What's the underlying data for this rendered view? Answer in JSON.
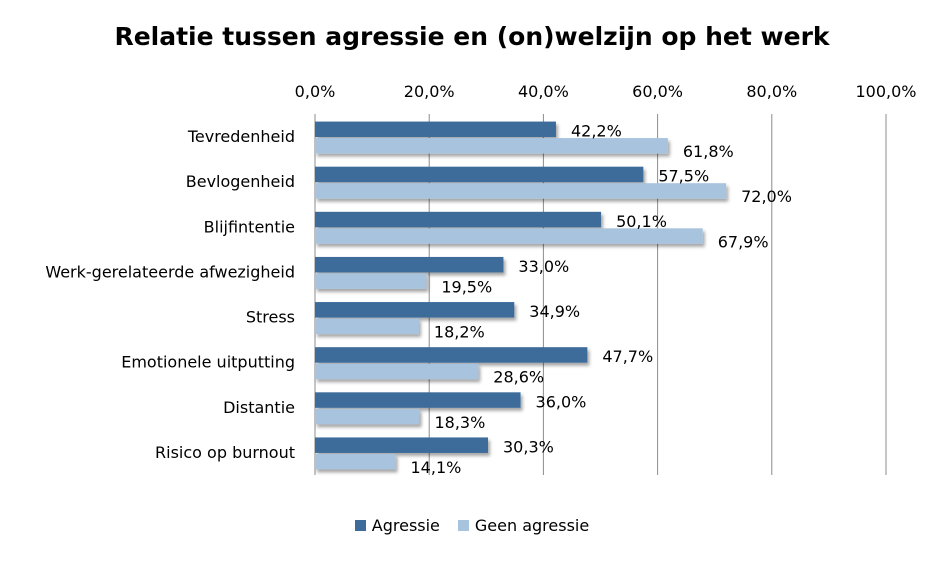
{
  "chart_data": {
    "type": "bar",
    "orientation": "horizontal",
    "title": "Relatie tussen agressie en (on)welzijn op het werk",
    "categories": [
      "Tevredenheid",
      "Bevlogenheid",
      "Blijfintentie",
      "Werk-gerelateerde afwezigheid",
      "Stress",
      "Emotionele uitputting",
      "Distantie",
      "Risico op burnout"
    ],
    "series": [
      {
        "name": "Agressie",
        "color": "#3d6c9b",
        "values": [
          42.2,
          57.5,
          50.1,
          33.0,
          34.9,
          47.7,
          36.0,
          30.3
        ],
        "labels": [
          "42,2%",
          "57,5%",
          "50,1%",
          "33,0%",
          "34,9%",
          "47,7%",
          "36,0%",
          "30,3%"
        ]
      },
      {
        "name": "Geen agressie",
        "color": "#a8c3de",
        "values": [
          61.8,
          72.0,
          67.9,
          19.5,
          18.2,
          28.6,
          18.3,
          14.1
        ],
        "labels": [
          "61,8%",
          "72,0%",
          "67,9%",
          "19,5%",
          "18,2%",
          "28,6%",
          "18,3%",
          "14,1%"
        ]
      }
    ],
    "xlim": [
      0,
      100
    ],
    "xticks": [
      0,
      20,
      40,
      60,
      80,
      100
    ],
    "xtick_labels": [
      "0,0%",
      "20,0%",
      "40,0%",
      "60,0%",
      "80,0%",
      "100,0%"
    ],
    "axis_position": "top",
    "grid": true,
    "legend_position": "bottom"
  }
}
